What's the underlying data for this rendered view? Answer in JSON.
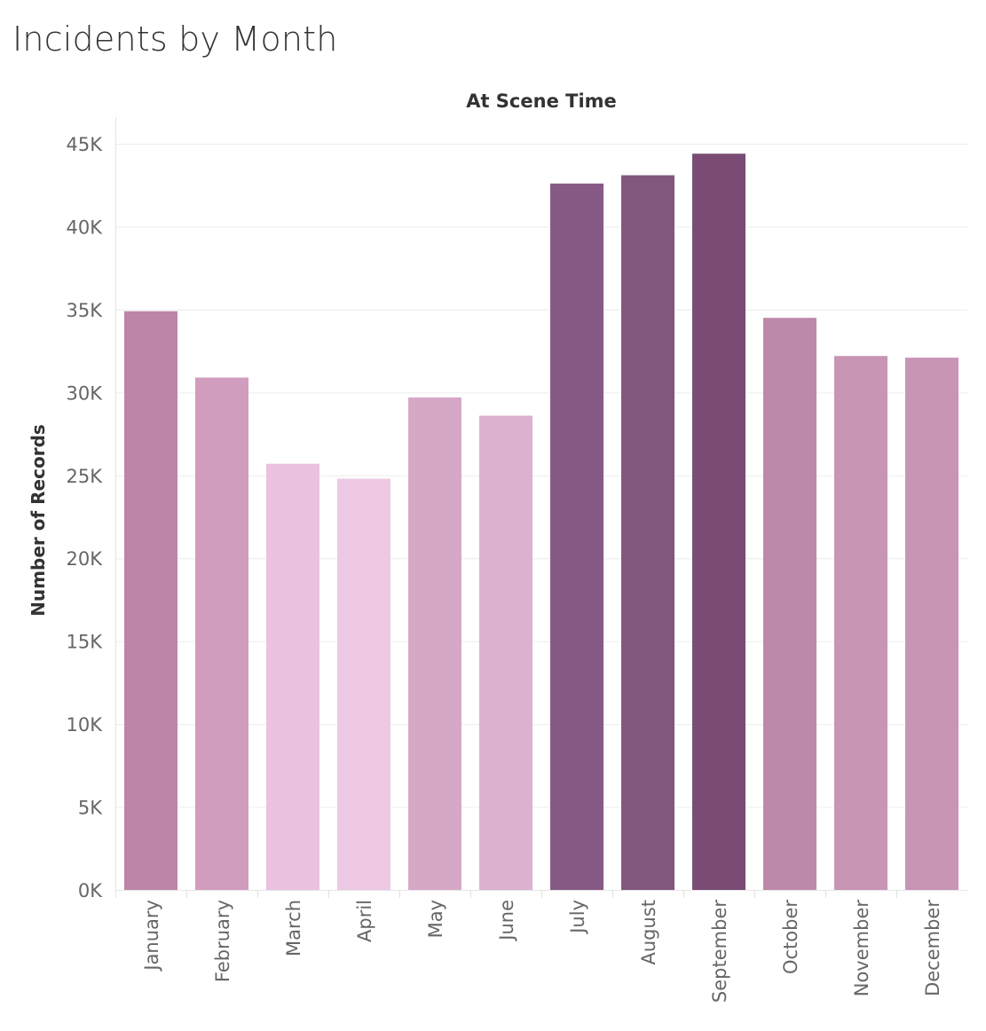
{
  "title": "Incidents by Month",
  "chart_data": {
    "type": "bar",
    "column_header": "At Scene Time",
    "ylabel": "Number of Records",
    "xlabel": "",
    "ylim": [
      0,
      45000
    ],
    "y_ticks": [
      "0K",
      "5K",
      "10K",
      "15K",
      "20K",
      "25K",
      "30K",
      "35K",
      "40K",
      "45K"
    ],
    "y_tick_values": [
      0,
      5000,
      10000,
      15000,
      20000,
      25000,
      30000,
      35000,
      40000,
      45000
    ],
    "grid": true,
    "categories": [
      "January",
      "February",
      "March",
      "April",
      "May",
      "June",
      "July",
      "August",
      "September",
      "October",
      "November",
      "December"
    ],
    "values": [
      34900,
      30900,
      25700,
      24800,
      29700,
      28600,
      42600,
      43100,
      44400,
      34500,
      32200,
      32100
    ],
    "colors": [
      "#bd85a8",
      "#d19dbe",
      "#eac2e0",
      "#edc9e4",
      "#d6a8c6",
      "#dcb0cf",
      "#875a86",
      "#82577f",
      "#7a4c75",
      "#be88aa",
      "#c895b5",
      "#c895b5"
    ]
  }
}
